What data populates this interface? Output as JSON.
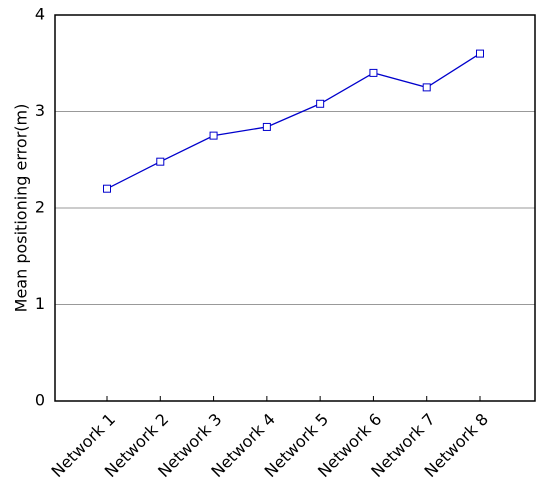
{
  "chart_data": {
    "type": "line",
    "y_label": "Mean positioning error(m)",
    "categories": [
      "Network 1",
      "Network 2",
      "Network 3",
      "Network 4",
      "Network 5",
      "Network 6",
      "Network 7",
      "Network 8"
    ],
    "series": [
      {
        "color": "#0000cc",
        "values": [
          2.2,
          2.48,
          2.75,
          2.84,
          3.08,
          3.4,
          3.25,
          3.6
        ]
      }
    ],
    "ylim": [
      0,
      4
    ],
    "yticks": [
      0,
      1,
      2,
      3,
      4
    ],
    "grid": true
  }
}
